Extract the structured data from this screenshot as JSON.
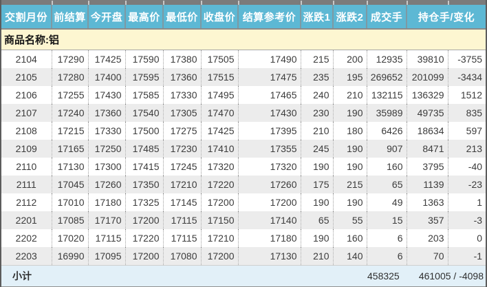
{
  "table": {
    "product_label": "商品名称:铝",
    "columns": [
      "交割月份",
      "前结算",
      "今开盘",
      "最高价",
      "最低价",
      "收盘价",
      "结算参考价",
      "涨跌1",
      "涨跌2",
      "成交手",
      "持仓手/变化"
    ],
    "rows": [
      [
        "2104",
        "17290",
        "17425",
        "17590",
        "17380",
        "17505",
        "17490",
        "215",
        "200",
        "12935",
        "39810",
        "-3755"
      ],
      [
        "2105",
        "17280",
        "17400",
        "17595",
        "17360",
        "17515",
        "17475",
        "235",
        "195",
        "269652",
        "201099",
        "-3434"
      ],
      [
        "2106",
        "17255",
        "17430",
        "17585",
        "17330",
        "17495",
        "17465",
        "240",
        "210",
        "132115",
        "136329",
        "1512"
      ],
      [
        "2107",
        "17240",
        "17360",
        "17540",
        "17305",
        "17470",
        "17430",
        "230",
        "190",
        "35989",
        "49735",
        "835"
      ],
      [
        "2108",
        "17215",
        "17330",
        "17500",
        "17275",
        "17425",
        "17395",
        "210",
        "180",
        "6426",
        "18634",
        "597"
      ],
      [
        "2109",
        "17165",
        "17250",
        "17485",
        "17230",
        "17410",
        "17355",
        "245",
        "190",
        "907",
        "8471",
        "213"
      ],
      [
        "2110",
        "17130",
        "17300",
        "17415",
        "17245",
        "17320",
        "17320",
        "190",
        "190",
        "160",
        "3795",
        "-40"
      ],
      [
        "2111",
        "17045",
        "17260",
        "17350",
        "17210",
        "17220",
        "17260",
        "175",
        "215",
        "65",
        "1139",
        "-23"
      ],
      [
        "2112",
        "17010",
        "17180",
        "17325",
        "17145",
        "17200",
        "17200",
        "190",
        "190",
        "49",
        "1363",
        "1"
      ],
      [
        "2201",
        "17085",
        "17170",
        "17200",
        "17115",
        "17150",
        "17140",
        "65",
        "55",
        "15",
        "357",
        "-3"
      ],
      [
        "2202",
        "17020",
        "17115",
        "17220",
        "17115",
        "17210",
        "17180",
        "190",
        "160",
        "6",
        "203",
        "0"
      ],
      [
        "2203",
        "16990",
        "17095",
        "17200",
        "17080",
        "17200",
        "17130",
        "210",
        "140",
        "6",
        "70",
        "-1"
      ]
    ],
    "subtotal": {
      "label": "小计",
      "volume": "458325",
      "open_interest_change": "461005 / -4098"
    }
  },
  "colors": {
    "header_bg": "#5db8d4",
    "header_text": "#ffffff",
    "product_row_bg": "#fdf6d1",
    "row_bg": "#ffffff",
    "row_alt_bg": "#ececec",
    "subtotal_bg": "#e2f0f8",
    "frame_gray": "#7b7b7b",
    "bottom_bar_teal": "#69b7ce",
    "data_text": "#3b3b3b"
  }
}
